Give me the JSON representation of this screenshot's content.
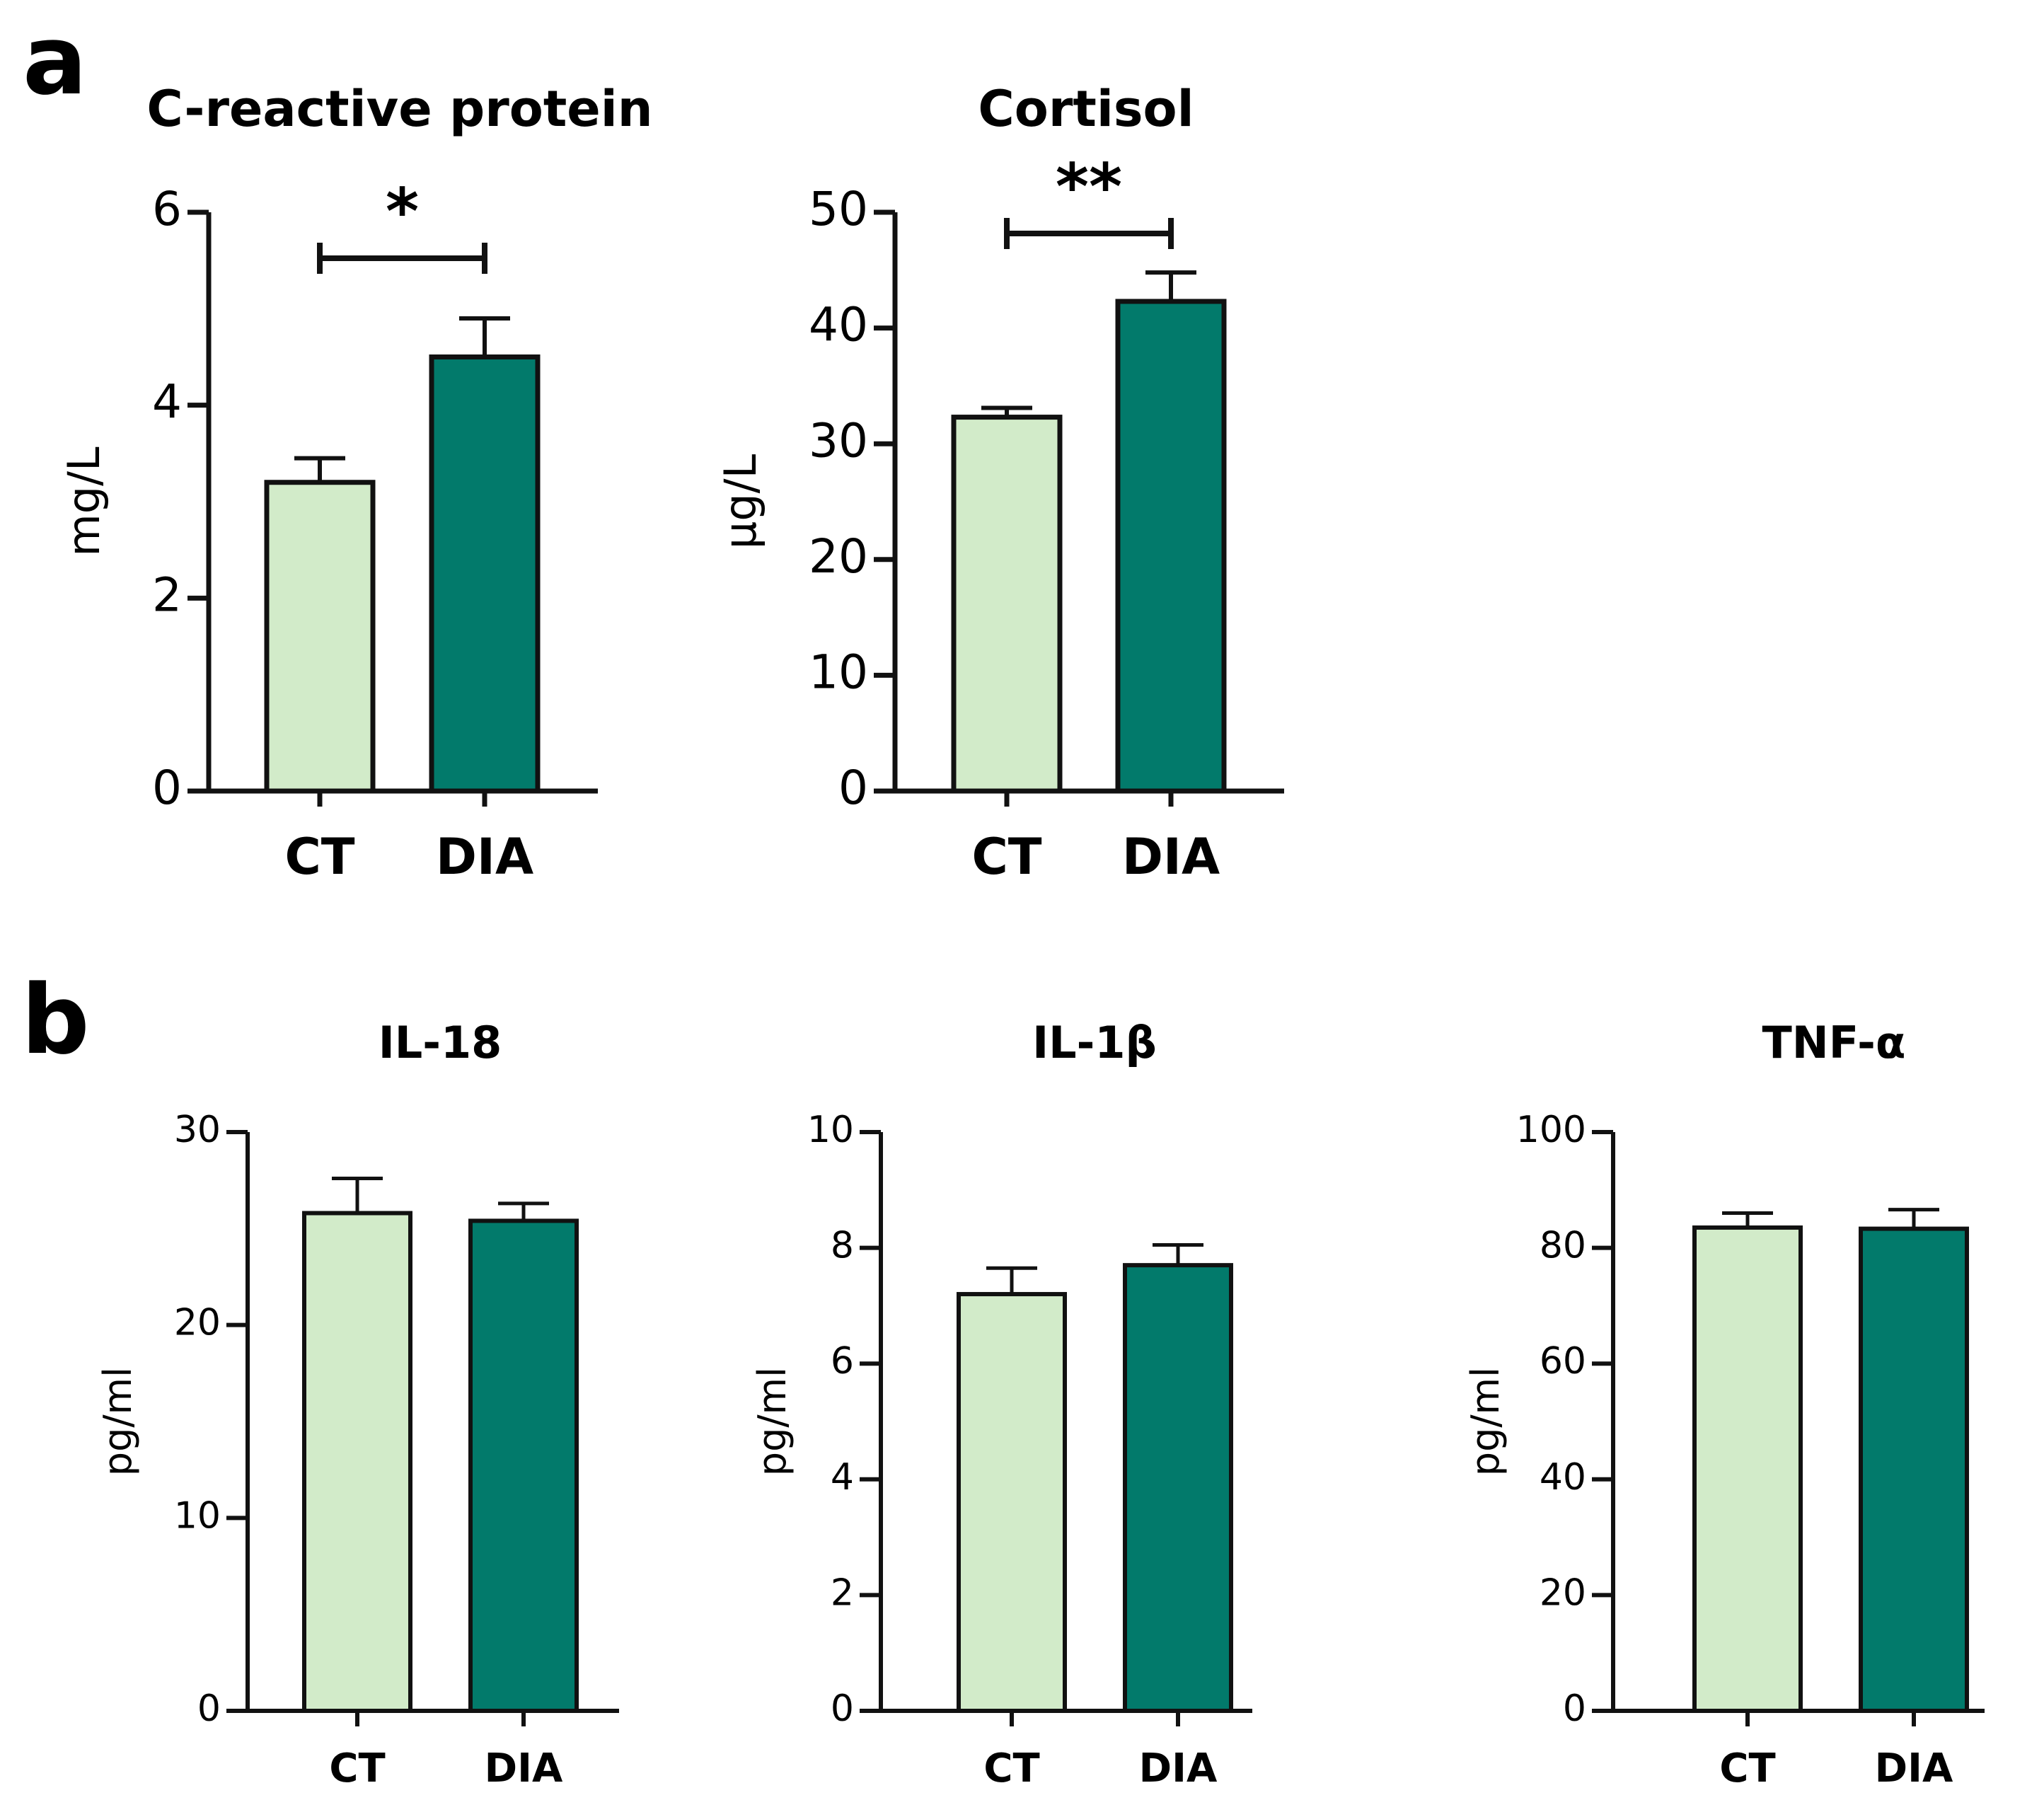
{
  "panels": {
    "a": "a",
    "b": "b"
  },
  "colors": {
    "ct": "#d2ebc9",
    "dia": "#027a6b",
    "stroke": "#111111"
  },
  "chart_data": [
    {
      "type": "bar",
      "title": "C-reactive protein",
      "ylabel": "mg/L",
      "categories": [
        "CT",
        "DIA"
      ],
      "values": [
        3.2,
        4.5
      ],
      "errors": [
        0.25,
        0.4
      ],
      "ylim": [
        0,
        6
      ],
      "yticks": [
        "0",
        "2",
        "4",
        "6"
      ],
      "significance": "*"
    },
    {
      "type": "bar",
      "title": "Cortisol",
      "ylabel": "µg/L",
      "categories": [
        "CT",
        "DIA"
      ],
      "values": [
        32.3,
        42.3
      ],
      "errors": [
        0.8,
        2.5
      ],
      "ylim": [
        0,
        50
      ],
      "yticks": [
        "0",
        "10",
        "20",
        "30",
        "40",
        "50"
      ],
      "significance": "**"
    },
    {
      "type": "bar",
      "title": "IL-18",
      "ylabel": "pg/ml",
      "categories": [
        "CT",
        "DIA"
      ],
      "values": [
        25.8,
        25.4
      ],
      "errors": [
        1.8,
        0.9
      ],
      "ylim": [
        0,
        30
      ],
      "yticks": [
        "0",
        "10",
        "20",
        "30"
      ],
      "significance": ""
    },
    {
      "type": "bar",
      "title": "IL-1β",
      "ylabel": "pg/ml",
      "categories": [
        "CT",
        "DIA"
      ],
      "values": [
        7.2,
        7.7
      ],
      "errors": [
        0.45,
        0.35
      ],
      "ylim": [
        0,
        10
      ],
      "yticks": [
        "0",
        "2",
        "4",
        "6",
        "8",
        "10"
      ],
      "significance": ""
    },
    {
      "type": "bar",
      "title": "TNF-α",
      "ylabel": "pg/ml",
      "categories": [
        "CT",
        "DIA"
      ],
      "values": [
        83.5,
        83.3
      ],
      "errors": [
        2.5,
        3.3
      ],
      "ylim": [
        0,
        100
      ],
      "yticks": [
        "0",
        "20",
        "40",
        "60",
        "80",
        "100"
      ],
      "significance": ""
    }
  ]
}
